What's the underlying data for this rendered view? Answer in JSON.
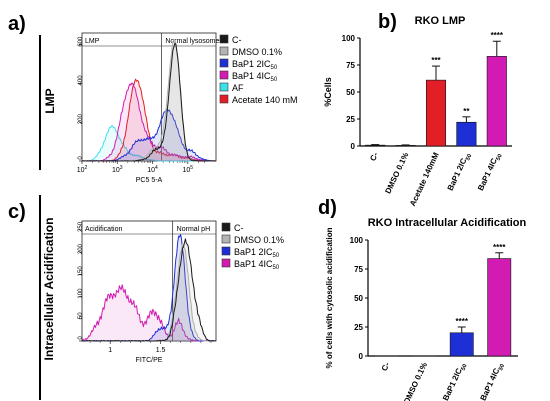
{
  "panel_letters": [
    "a)",
    "b)",
    "c)",
    "d)"
  ],
  "colors": {
    "control": "#1a1a1a",
    "dmso": "#b4b4b4",
    "bap1_2ic50": "#1f2fd6",
    "bap1_4ic50": "#d11bb3",
    "af": "#3fe0ea",
    "acetate": "#e21f26"
  },
  "legend_a": [
    {
      "label": "C-",
      "color": "#1a1a1a"
    },
    {
      "label": "DMSO 0.1%",
      "color": "#b4b4b4"
    },
    {
      "label": "BaP1 2IC50",
      "color": "#1f2fd6"
    },
    {
      "label": "BaP1 4IC50",
      "color": "#d11bb3"
    },
    {
      "label": "AF",
      "color": "#3fe0ea"
    },
    {
      "label": "Acetate 140 mM",
      "color": "#e21f26"
    }
  ],
  "legend_c": [
    {
      "label": "C-",
      "color": "#1a1a1a"
    },
    {
      "label": "DMSO 0.1%",
      "color": "#b4b4b4"
    },
    {
      "label": "BaP1 2IC50",
      "color": "#1f2fd6"
    },
    {
      "label": "BaP1 4IC50",
      "color": "#d11bb3"
    }
  ],
  "chart_data": [
    {
      "type": "area",
      "panel": "a)",
      "ylabel": "LMP",
      "xlabel": "PC5 5-A",
      "x_scale": "log",
      "x_ticks": [
        "10^2",
        "10^3",
        "10^4",
        "10^5"
      ],
      "y_ticks": [
        0,
        200,
        400,
        600
      ],
      "gates": [
        {
          "label": "LMP"
        },
        {
          "label": "Normal lysosomes"
        }
      ],
      "series": [
        {
          "name": "AF",
          "color": "#3fe0ea",
          "peak_x": "~10^2.9",
          "peak_y": 180
        },
        {
          "name": "Acetate 140 mM",
          "color": "#e21f26",
          "peak_x": "~10^3.5",
          "peak_y": 420
        },
        {
          "name": "BaP1 4IC50",
          "color": "#d11bb3",
          "peak_x": "~10^3.4",
          "peak_y": 400
        },
        {
          "name": "BaP1 2IC50",
          "color": "#1f2fd6",
          "peak_x": "~10^4.4",
          "peak_y": 260
        },
        {
          "name": "DMSO 0.1%",
          "color": "#b4b4b4",
          "peak_x": "~10^4.6",
          "peak_y": 610
        },
        {
          "name": "C-",
          "color": "#1a1a1a",
          "peak_x": "~10^4.6",
          "peak_y": 590
        }
      ]
    },
    {
      "type": "bar",
      "panel": "b)",
      "title": "RKO LMP",
      "ylabel": "%Cells",
      "ylim": [
        0,
        100
      ],
      "y_ticks": [
        0,
        25,
        50,
        75,
        100
      ],
      "categories": [
        "C-",
        "DMSO 0.1%",
        "Acetate 140mM",
        "BaP1 2IC50",
        "BaP1 4IC50"
      ],
      "values": [
        0.8,
        0.6,
        61,
        22,
        83
      ],
      "errors": [
        0.5,
        0.4,
        13,
        5,
        14
      ],
      "significance": [
        "",
        "",
        "***",
        "**",
        "****"
      ],
      "colors": [
        "#1a1a1a",
        "#b4b4b4",
        "#e21f26",
        "#1f2fd6",
        "#d11bb3"
      ]
    },
    {
      "type": "area",
      "panel": "c)",
      "ylabel": "Intracellular Acidification",
      "xlabel": "FITC/PE",
      "x_ticks": [
        "1",
        "1.5"
      ],
      "y_ticks": [
        0,
        50,
        100,
        150,
        200,
        250
      ],
      "gates": [
        {
          "label": "Acidification"
        },
        {
          "label": "Normal pH"
        }
      ],
      "series": [
        {
          "name": "BaP1 4IC50",
          "color": "#d11bb3",
          "peak_x": 1.15,
          "peak_y": 110
        },
        {
          "name": "BaP1 2IC50",
          "color": "#1f2fd6",
          "peak_x": 1.69,
          "peak_y": 235
        },
        {
          "name": "DMSO 0.1%",
          "color": "#b4b4b4",
          "peak_x": 1.71,
          "peak_y": 215
        },
        {
          "name": "C-",
          "color": "#1a1a1a",
          "peak_x": 1.73,
          "peak_y": 220
        }
      ]
    },
    {
      "type": "bar",
      "panel": "d)",
      "title": "RKO Intracellular Acidification",
      "ylabel": "% of cells with cytosolic acidification",
      "ylim": [
        0,
        100
      ],
      "y_ticks": [
        0,
        25,
        50,
        75,
        100
      ],
      "categories": [
        "C-",
        "DMSO 0.1%",
        "BaP1 2IC50",
        "BaP1 4IC50"
      ],
      "values": [
        0,
        0,
        20,
        84
      ],
      "errors": [
        0,
        0,
        5,
        5
      ],
      "significance": [
        "",
        "",
        "****",
        "****"
      ],
      "colors": [
        "#1a1a1a",
        "#b4b4b4",
        "#1f2fd6",
        "#d11bb3"
      ]
    }
  ]
}
